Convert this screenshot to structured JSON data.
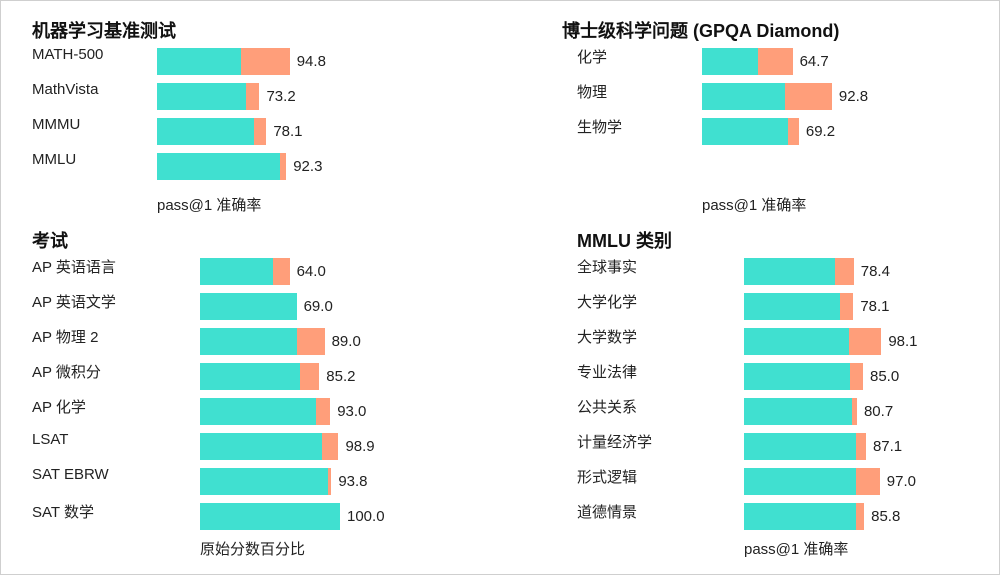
{
  "colors": {
    "base": "#40E0D0",
    "gain": "#FF9E7A"
  },
  "chart_data": [
    {
      "type": "bar",
      "orientation": "horizontal",
      "stacked": true,
      "title": "机器学习基准测试",
      "xlabel": "pass@1 准确率",
      "xlim": [
        0,
        100
      ],
      "categories": [
        "MATH-500",
        "MathVista",
        "MMMU",
        "MMLU"
      ],
      "base_values": [
        60.3,
        63.8,
        69.1,
        88.0
      ],
      "values": [
        94.8,
        73.2,
        78.1,
        92.3
      ],
      "data_labels": [
        "94.8",
        "73.2",
        "78.1",
        "92.3"
      ]
    },
    {
      "type": "bar",
      "orientation": "horizontal",
      "stacked": true,
      "title": "博士级科学问题 (GPQA Diamond)",
      "xlabel": "pass@1 准确率",
      "xlim": [
        0,
        100
      ],
      "categories": [
        "化学",
        "物理",
        "生物学"
      ],
      "base_values": [
        40.2,
        59.5,
        61.6
      ],
      "values": [
        64.7,
        92.8,
        69.2
      ],
      "data_labels": [
        "64.7",
        "92.8",
        "69.2"
      ]
    },
    {
      "type": "bar",
      "orientation": "horizontal",
      "stacked": true,
      "title": "考试",
      "xlabel": "原始分数百分比",
      "xlim": [
        0,
        100
      ],
      "categories": [
        "AP 英语语言",
        "AP 英语文学",
        "AP 物理 2",
        "AP 微积分",
        "AP 化学",
        "LSAT",
        "SAT EBRW",
        "SAT 数学"
      ],
      "base_values": [
        52.0,
        69.0,
        69.0,
        71.3,
        83.0,
        87.0,
        91.3,
        100.0
      ],
      "values": [
        64.0,
        69.0,
        89.0,
        85.2,
        93.0,
        98.9,
        93.8,
        100.0
      ],
      "data_labels": [
        "64.0",
        "69.0",
        "89.0",
        "85.2",
        "93.0",
        "98.9",
        "93.8",
        "100.0"
      ]
    },
    {
      "type": "bar",
      "orientation": "horizontal",
      "stacked": true,
      "title": "MMLU 类别",
      "xlabel": "pass@1 准确率",
      "xlim": [
        0,
        100
      ],
      "categories": [
        "全球事实",
        "大学化学",
        "大学数学",
        "专业法律",
        "公共关系",
        "计量经济学",
        "形式逻辑",
        "道德情景"
      ],
      "base_values": [
        65.1,
        68.9,
        75.2,
        75.6,
        76.8,
        79.8,
        80.2,
        80.2
      ],
      "values": [
        78.4,
        78.1,
        98.1,
        85.0,
        80.7,
        87.1,
        97.0,
        85.8
      ],
      "data_labels": [
        "78.4",
        "78.1",
        "98.1",
        "85.0",
        "80.7",
        "87.1",
        "97.0",
        "85.8"
      ]
    }
  ]
}
